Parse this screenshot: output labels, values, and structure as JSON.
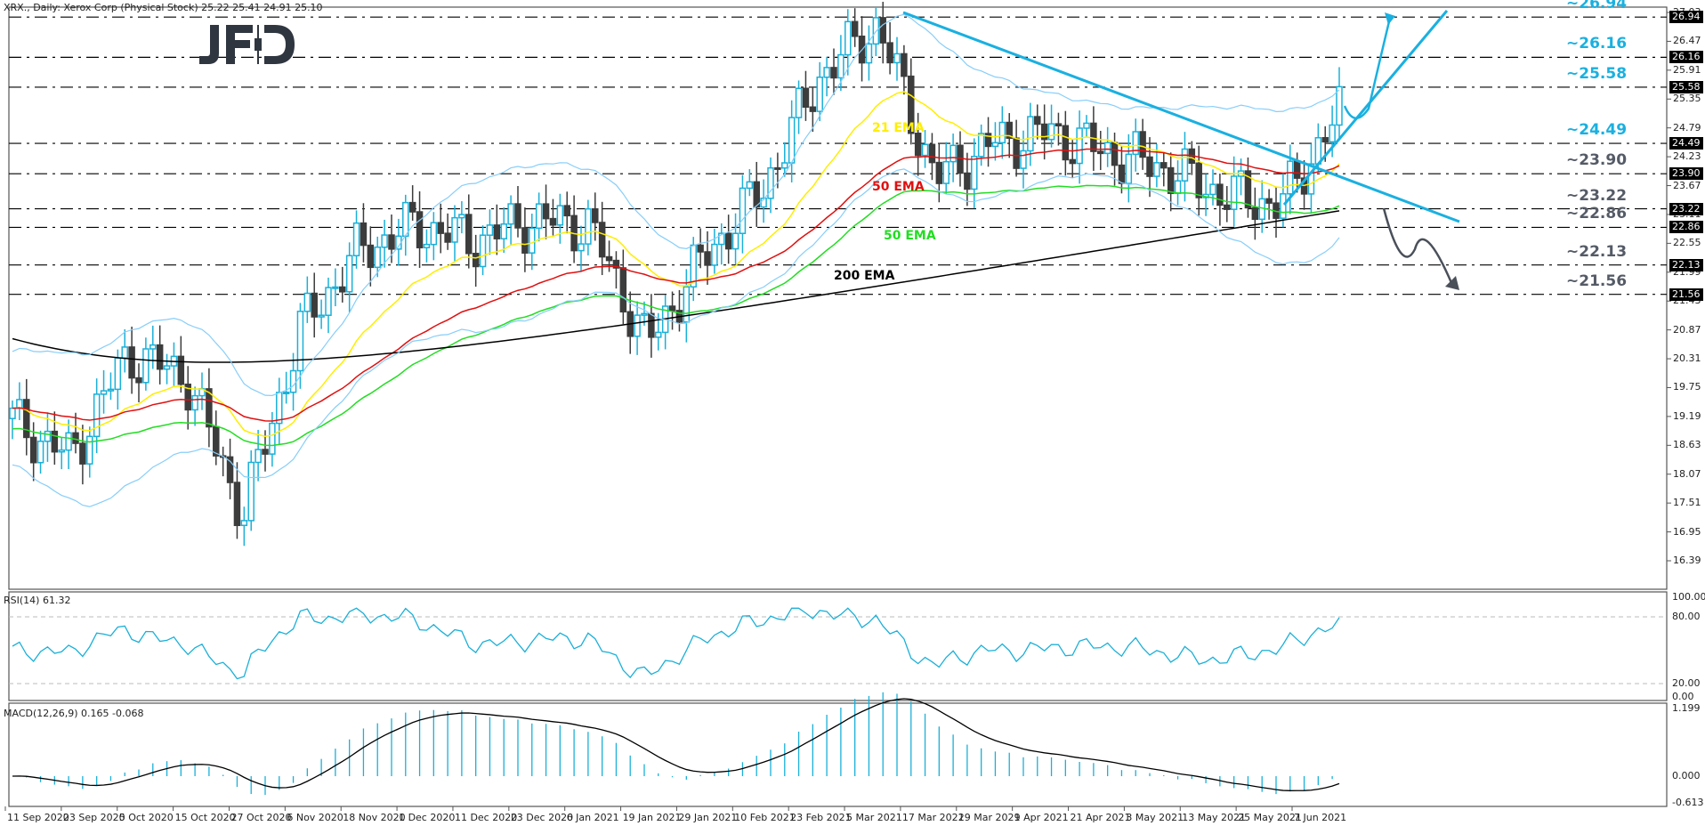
{
  "header": {
    "main": "XRX., Daily:  Xerox Corp (Physical Stock)  25.22 25.41 24.91 25.10",
    "rsi": "RSI(14) 61.32",
    "macd": "MACD(12,26,9) 0.165 -0.068"
  },
  "logo": {
    "text": "JFD",
    "color": "#2f3640"
  },
  "colors": {
    "bull": "#1ab0d8",
    "bear": "#3c3c3c",
    "ema21": "#ffee00",
    "ema50_red": "#e01010",
    "ema50_green": "#22dd22",
    "ema200": "#000000",
    "bollinger": "#87cefa",
    "trendline": "#1ab0e0",
    "level_bull_label": "#1ab0e0",
    "level_bear_label": "#555b66",
    "rsi_line": "#1ab0d8",
    "macd_hist": "#1ab0d8",
    "macd_signal": "#000000"
  },
  "price_axis": {
    "ticks": [
      "27.03",
      "26.47",
      "25.91",
      "25.35",
      "24.79",
      "24.23",
      "23.67",
      "23.11",
      "22.55",
      "21.99",
      "21.43",
      "20.87",
      "20.31",
      "19.75",
      "19.19",
      "18.63",
      "18.07",
      "17.51",
      "16.95",
      "16.39"
    ],
    "levels": [
      {
        "value": "26.94",
        "label": "~26.94",
        "side": "bull"
      },
      {
        "value": "26.16",
        "label": "~26.16",
        "side": "bull"
      },
      {
        "value": "25.58",
        "label": "~25.58",
        "side": "bull"
      },
      {
        "value": "24.49",
        "label": "~24.49",
        "side": "bull"
      },
      {
        "value": "23.90",
        "label": "~23.90",
        "side": "bear"
      },
      {
        "value": "23.22",
        "label": "~23.22",
        "side": "bear"
      },
      {
        "value": "22.86",
        "label": "~22.86",
        "side": "bear"
      },
      {
        "value": "22.13",
        "label": "~22.13",
        "side": "bear"
      },
      {
        "value": "21.56",
        "label": "~21.56",
        "side": "bear"
      }
    ]
  },
  "ema_labels": {
    "ema21": "21 EMA",
    "ema50_red": "50 EMA",
    "ema50_green": "50 EMA",
    "ema200": "200 EMA"
  },
  "rsi_axis": [
    "100.00",
    "80.00",
    "20.00",
    "0.00"
  ],
  "macd_axis": [
    "1.199",
    "0.000",
    "-0.613"
  ],
  "date_axis": [
    "11 Sep 2020",
    "23 Sep 2020",
    "5 Oct 2020",
    "15 Oct 2020",
    "27 Oct 2020",
    "6 Nov 2020",
    "18 Nov 2020",
    "1 Dec 2020",
    "11 Dec 2020",
    "23 Dec 2020",
    "6 Jan 2021",
    "19 Jan 2021",
    "29 Jan 2021",
    "10 Feb 2021",
    "23 Feb 2021",
    "5 Mar 2021",
    "17 Mar 2021",
    "29 Mar 2021",
    "9 Apr 2021",
    "21 Apr 2021",
    "3 May 2021",
    "13 May 2021",
    "25 May 2021",
    "7 Jun 2021"
  ],
  "chart_data": {
    "type": "candlestick",
    "title": "XRX., Daily: Xerox Corp (Physical Stock)",
    "last_ohlc": {
      "open": 25.22,
      "high": 25.41,
      "low": 24.91,
      "close": 25.1
    },
    "ylim": [
      15.9,
      27.1
    ],
    "x_tick_labels": [
      "11 Sep 2020",
      "23 Sep 2020",
      "5 Oct 2020",
      "15 Oct 2020",
      "27 Oct 2020",
      "6 Nov 2020",
      "18 Nov 2020",
      "1 Dec 2020",
      "11 Dec 2020",
      "23 Dec 2020",
      "6 Jan 2021",
      "19 Jan 2021",
      "29 Jan 2021",
      "10 Feb 2021",
      "23 Feb 2021",
      "5 Mar 2021",
      "17 Mar 2021",
      "29 Mar 2021",
      "9 Apr 2021",
      "21 Apr 2021",
      "3 May 2021",
      "13 May 2021",
      "25 May 2021",
      "7 Jun 2021"
    ],
    "approx_close_path": [
      {
        "date": "11 Sep 2020",
        "close": 19.1
      },
      {
        "date": "23 Sep 2020",
        "close": 18.4
      },
      {
        "date": "5 Oct 2020",
        "close": 20.4
      },
      {
        "date": "15 Oct 2020",
        "close": 20.0
      },
      {
        "date": "27 Oct 2020",
        "close": 17.3
      },
      {
        "date": "6 Nov 2020",
        "close": 20.9
      },
      {
        "date": "18 Nov 2020",
        "close": 22.4
      },
      {
        "date": "1 Dec 2020",
        "close": 22.9
      },
      {
        "date": "11 Dec 2020",
        "close": 22.6
      },
      {
        "date": "23 Dec 2020",
        "close": 23.0
      },
      {
        "date": "6 Jan 2021",
        "close": 22.9
      },
      {
        "date": "19 Jan 2021",
        "close": 20.6
      },
      {
        "date": "29 Jan 2021",
        "close": 22.3
      },
      {
        "date": "10 Feb 2021",
        "close": 23.6
      },
      {
        "date": "23 Feb 2021",
        "close": 25.8
      },
      {
        "date": "5 Mar 2021",
        "close": 26.8
      },
      {
        "date": "17 Mar 2021",
        "close": 23.8
      },
      {
        "date": "29 Mar 2021",
        "close": 24.5
      },
      {
        "date": "9 Apr 2021",
        "close": 24.7
      },
      {
        "date": "21 Apr 2021",
        "close": 24.3
      },
      {
        "date": "3 May 2021",
        "close": 24.0
      },
      {
        "date": "13 May 2021",
        "close": 23.5
      },
      {
        "date": "25 May 2021",
        "close": 23.3
      },
      {
        "date": "7 Jun 2021",
        "close": 25.1
      }
    ],
    "indicators": [
      "EMA 21",
      "EMA 50",
      "EMA 200",
      "Bollinger Bands",
      "RSI(14)",
      "MACD(12,26,9)"
    ],
    "horizontal_levels": [
      26.94,
      26.16,
      25.58,
      24.49,
      23.9,
      23.22,
      22.86,
      22.13,
      21.56
    ],
    "rsi": {
      "period": 14,
      "last": 61.32,
      "levels": [
        80,
        20
      ],
      "ylim": [
        0,
        100
      ]
    },
    "macd": {
      "params": [
        12,
        26,
        9
      ],
      "main": 0.165,
      "signal": -0.068,
      "ylim": [
        -0.613,
        1.199
      ]
    },
    "annotations": [
      "Downtrend line from Mar 2021 high broken",
      "Rising trendline from May 2021 low",
      "Bullish scenario arrow to 26.94",
      "Bearish scenario arrow to 21.56"
    ]
  }
}
